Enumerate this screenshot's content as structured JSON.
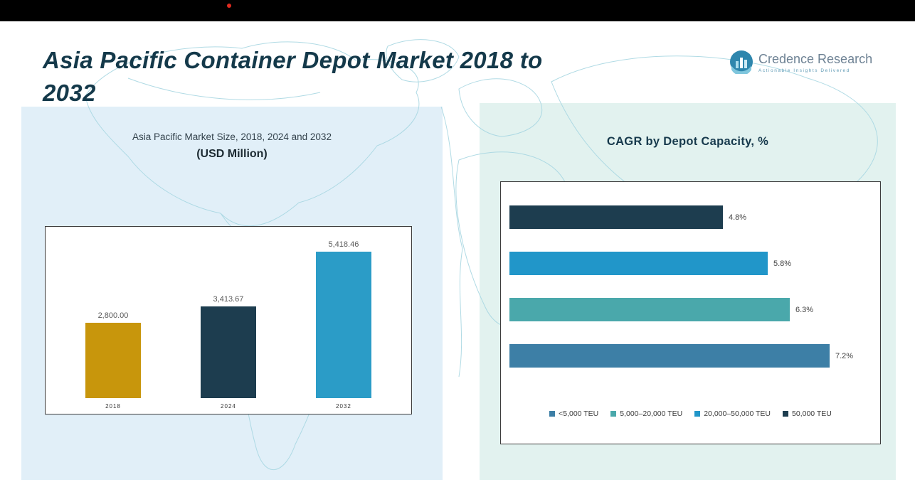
{
  "header": {
    "title_line1": "Asia Pacific Container Depot Market 2018 to",
    "title_line2": "2032",
    "logo": {
      "name": "Credence Research",
      "tagline": "Actionable Insights Delivered"
    }
  },
  "left_panel": {
    "title": "Asia Pacific Market Size, 2018, 2024 and 2032",
    "subtitle": "(USD Million)"
  },
  "right_panel": {
    "title": "CAGR by Depot Capacity, %"
  },
  "colors": {
    "topbar": "#000000",
    "record_dot": "#e02b20",
    "left_panel_bg": "#e1eff8",
    "right_panel_bg": "#e2f2ef",
    "title_text": "#14394a",
    "map_lines": "#a8d7e2"
  },
  "chart_data": [
    {
      "type": "bar",
      "orientation": "vertical",
      "title": "Asia Pacific Market Size, 2018, 2024 and 2032 (USD Million)",
      "categories": [
        "2018",
        "2024",
        "2032"
      ],
      "values": [
        2800.0,
        3413.67,
        5418.46
      ],
      "value_labels": [
        "2,800.00",
        "3,413.67",
        "5,418.46"
      ],
      "bar_colors": [
        "#c8960c",
        "#1d3d4f",
        "#2b9cc7"
      ],
      "xlabel": "",
      "ylabel": "USD Million",
      "ylim": [
        0,
        5800
      ],
      "grid": false,
      "legend_position": "none"
    },
    {
      "type": "bar",
      "orientation": "horizontal",
      "title": "CAGR by Depot Capacity, %",
      "categories": [
        "50,000 TEU",
        "20,000–50,000 TEU",
        "5,000–20,000 TEU",
        "<5,000 TEU"
      ],
      "values": [
        4.8,
        5.8,
        6.3,
        7.2
      ],
      "value_labels": [
        "4.8%",
        "5.8%",
        "6.3%",
        "7.2%"
      ],
      "bar_colors": [
        "#1d3d4f",
        "#2196c9",
        "#4aa8ab",
        "#3d7fa6"
      ],
      "xlabel": "CAGR %",
      "ylabel": "",
      "xlim": [
        0,
        8
      ],
      "grid": false,
      "legend_position": "bottom",
      "legend": [
        {
          "label": "<5,000 TEU",
          "color": "#3d7fa6"
        },
        {
          "label": "5,000–20,000 TEU",
          "color": "#4aa8ab"
        },
        {
          "label": "20,000–50,000 TEU",
          "color": "#2196c9"
        },
        {
          "label": "50,000 TEU",
          "color": "#1d3d4f"
        }
      ]
    }
  ]
}
